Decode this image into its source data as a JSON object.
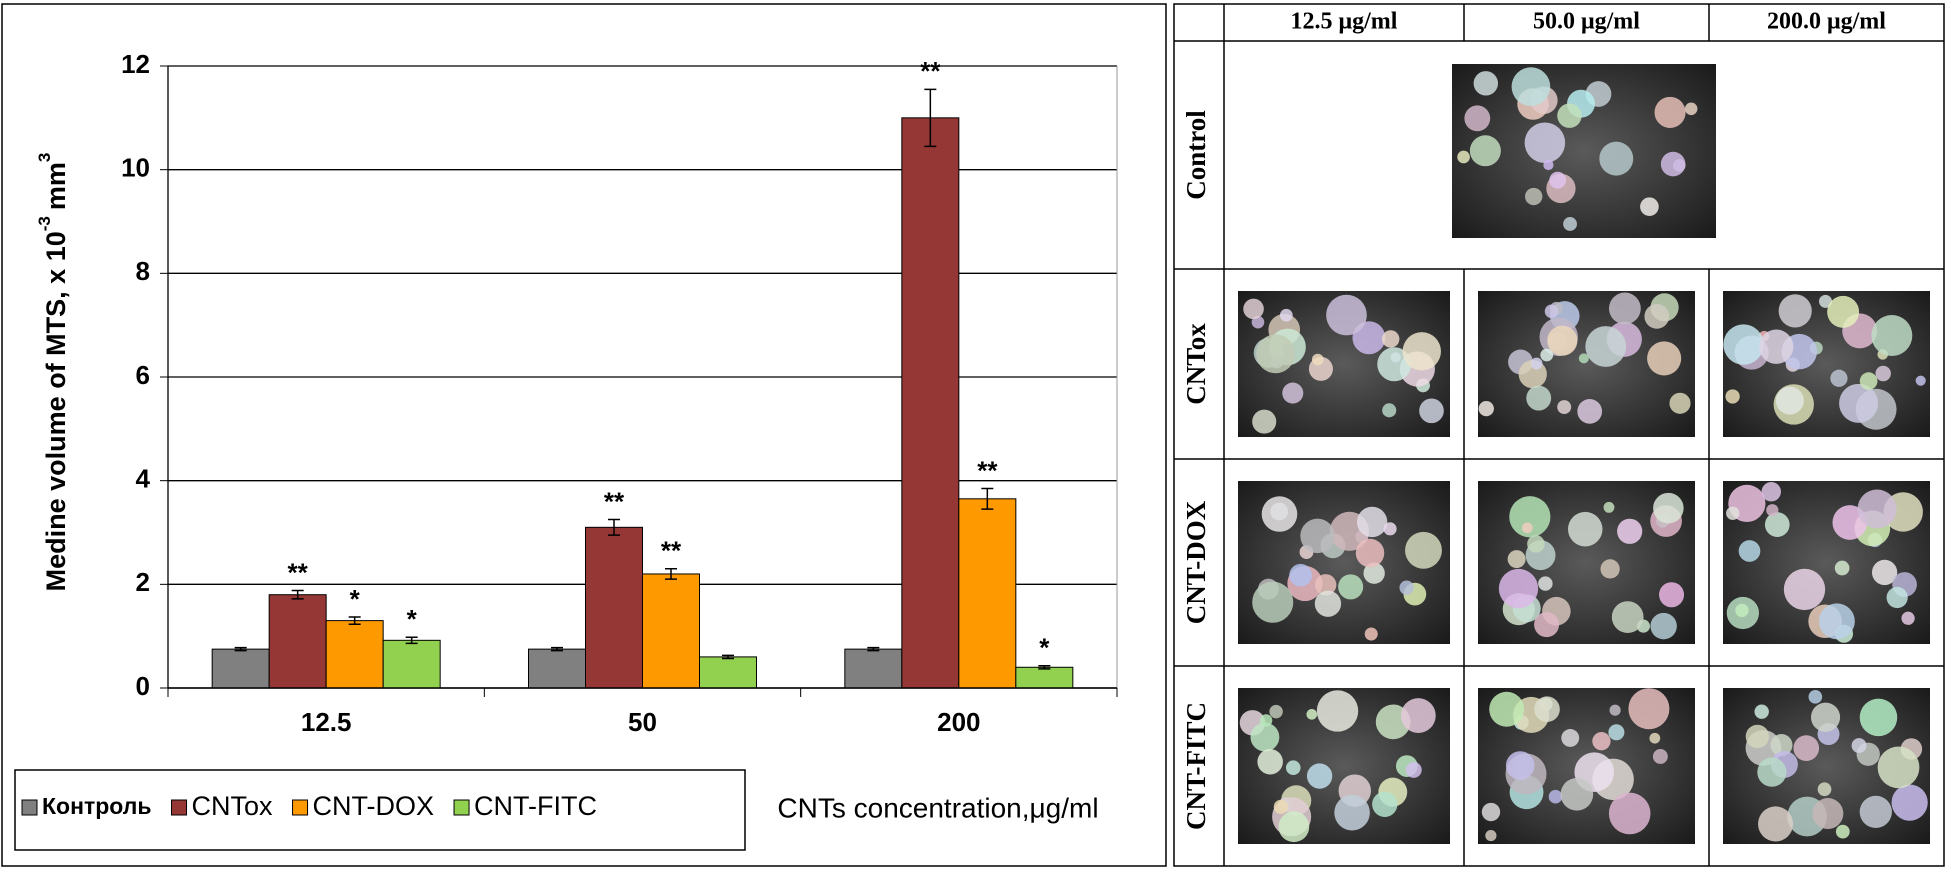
{
  "chart_data": {
    "type": "bar",
    "y_label": "Medine volume of MTS, x 10",
    "y_label_exp": "-3",
    "y_label_unit": "mm",
    "y_label_unit_exp": "3",
    "x_label": "CNTs concentration,μg/ml",
    "categories": [
      "12.5",
      "50",
      "200"
    ],
    "ylim": [
      0,
      12
    ],
    "yticks": [
      0,
      2,
      4,
      6,
      8,
      10,
      12
    ],
    "grid": true,
    "legend": "bottom-left",
    "series": [
      {
        "name": "Контроль",
        "color": "#808080",
        "values": [
          0.75,
          0.75,
          0.75
        ],
        "errors": [
          0.03,
          0.03,
          0.03
        ],
        "significance": [
          null,
          null,
          null
        ]
      },
      {
        "name": "CNTox",
        "color": "#953735",
        "values": [
          1.8,
          3.1,
          11.0
        ],
        "errors": [
          0.08,
          0.15,
          0.55
        ],
        "significance": [
          "**",
          "**",
          "**"
        ]
      },
      {
        "name": "CNT-DOX",
        "color": "#ff9900",
        "values": [
          1.3,
          2.2,
          3.65
        ],
        "errors": [
          0.07,
          0.1,
          0.2
        ],
        "significance": [
          "*",
          "**",
          "**"
        ]
      },
      {
        "name": "CNT-FITC",
        "color": "#92d050",
        "values": [
          0.92,
          0.6,
          0.4
        ],
        "errors": [
          0.06,
          0.03,
          0.03
        ],
        "significance": [
          "*",
          null,
          "*"
        ]
      }
    ]
  },
  "table": {
    "headers": [
      "12.5 μg/ml",
      "50.0 μg/ml",
      "200.0 μg/ml"
    ],
    "rows": [
      "Control",
      "CNTox",
      "CNT-DOX",
      "CNT-FITC"
    ]
  }
}
